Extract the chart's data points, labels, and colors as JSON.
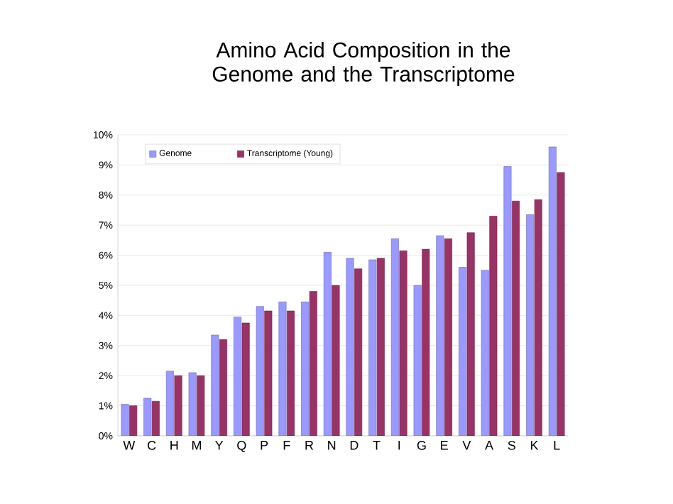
{
  "chart_data": {
    "type": "bar",
    "title": "Amino Acid Composition in the Genome and the Transcriptome",
    "categories": [
      "W",
      "C",
      "H",
      "M",
      "Y",
      "Q",
      "P",
      "F",
      "R",
      "N",
      "D",
      "T",
      "I",
      "G",
      "E",
      "V",
      "A",
      "S",
      "K",
      "L"
    ],
    "series": [
      {
        "name": "Genome",
        "color": "#9999ff",
        "values": [
          1.05,
          1.25,
          2.15,
          2.1,
          3.35,
          3.95,
          4.3,
          4.45,
          4.45,
          6.1,
          5.9,
          5.85,
          6.55,
          5.0,
          6.65,
          5.6,
          5.5,
          8.95,
          7.35,
          9.6
        ]
      },
      {
        "name": "Transcriptome (Young)",
        "color": "#993366",
        "values": [
          1.0,
          1.15,
          2.0,
          2.0,
          3.2,
          3.75,
          4.15,
          4.15,
          4.8,
          5.0,
          5.55,
          5.9,
          6.15,
          6.2,
          6.55,
          6.75,
          7.3,
          7.8,
          7.85,
          8.75
        ]
      }
    ],
    "ylim": [
      0,
      10
    ],
    "yticks": [
      {
        "value": 0,
        "label": "0%"
      },
      {
        "value": 1,
        "label": "1%"
      },
      {
        "value": 2,
        "label": "2%"
      },
      {
        "value": 3,
        "label": "3%"
      },
      {
        "value": 4,
        "label": "4%"
      },
      {
        "value": 5,
        "label": "5%"
      },
      {
        "value": 6,
        "label": "6%"
      },
      {
        "value": 7,
        "label": "7%"
      },
      {
        "value": 8,
        "label": "8%"
      },
      {
        "value": 9,
        "label": "9%"
      },
      {
        "value": 10,
        "label": "10%"
      }
    ],
    "grid": "y",
    "legend": "top"
  }
}
